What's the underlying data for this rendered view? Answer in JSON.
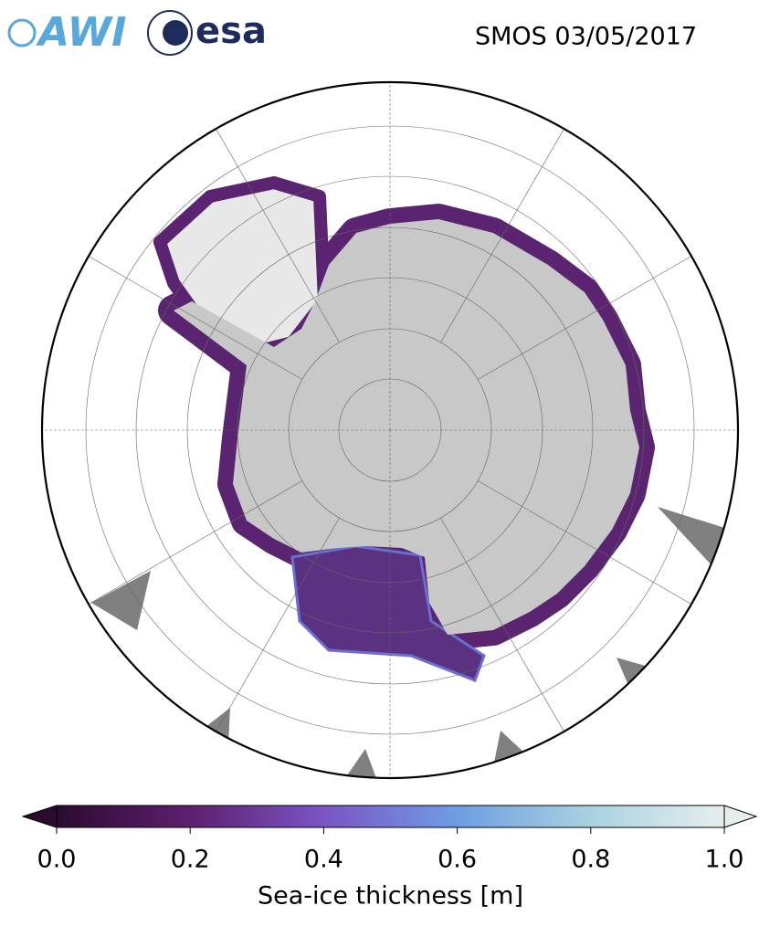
{
  "header": {
    "logo_awi": "AWI",
    "logo_esa": "esa",
    "title": "SMOS 03/05/2017"
  },
  "colorbar": {
    "label": "Sea-ice thickness [m]",
    "lim": [
      0,
      1
    ],
    "colors": [
      "#2b0b30",
      "#5e1f6f",
      "#7a55c4",
      "#6e9de2",
      "#a9d2e0",
      "#e6eeee"
    ],
    "ticks": [
      {
        "value": 0,
        "label": "0.0"
      },
      {
        "value": 0.2,
        "label": "0.2"
      },
      {
        "value": 0.4,
        "label": "0.4"
      },
      {
        "value": 0.6,
        "label": "0.6"
      },
      {
        "value": 0.8,
        "label": "0.8"
      },
      {
        "value": 1,
        "label": "1.0"
      }
    ]
  }
}
